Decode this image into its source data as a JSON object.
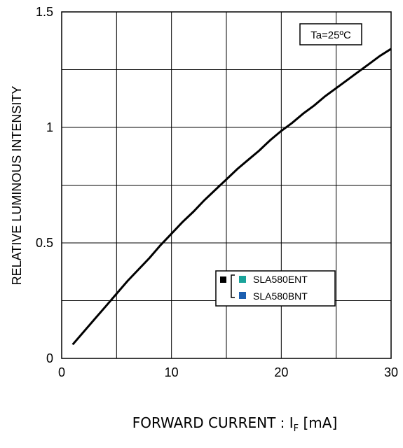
{
  "chart_data": {
    "type": "line",
    "ylabel": "RELATIVE LUMINOUS INTENSITY",
    "xlabel_main": "FORWARD CURRENT : I",
    "xlabel_sub": "F",
    "xlabel_unit": " [mA]",
    "xlim": [
      0,
      30
    ],
    "ylim": [
      0,
      1.5
    ],
    "x_ticks": [
      0,
      10,
      20,
      30
    ],
    "x_tick_labels": [
      "0",
      "10",
      "20",
      "30"
    ],
    "y_ticks": [
      0,
      0.5,
      1,
      1.5
    ],
    "y_tick_labels": [
      "0",
      "0.5",
      "1",
      "1.5"
    ],
    "grid": true,
    "condition_label": "Ta=25ºC",
    "legend": [
      {
        "label": "SLA580ENT",
        "color": "#1aa39a"
      },
      {
        "label": "SLA580BNT",
        "color": "#1b5fb0"
      }
    ],
    "legend_marker_color": "#000000",
    "series": [
      {
        "color": "#000000",
        "x": [
          1,
          2,
          3,
          4,
          5,
          6,
          7,
          8,
          9,
          10,
          11,
          12,
          13,
          14,
          15,
          16,
          17,
          18,
          19,
          20,
          21,
          22,
          23,
          24,
          25,
          26,
          27,
          28,
          29,
          30
        ],
        "y": [
          0.06,
          0.115,
          0.17,
          0.225,
          0.28,
          0.335,
          0.385,
          0.435,
          0.49,
          0.54,
          0.59,
          0.635,
          0.685,
          0.73,
          0.775,
          0.82,
          0.86,
          0.9,
          0.945,
          0.985,
          1.02,
          1.06,
          1.095,
          1.135,
          1.17,
          1.205,
          1.24,
          1.275,
          1.31,
          1.34
        ]
      }
    ]
  }
}
